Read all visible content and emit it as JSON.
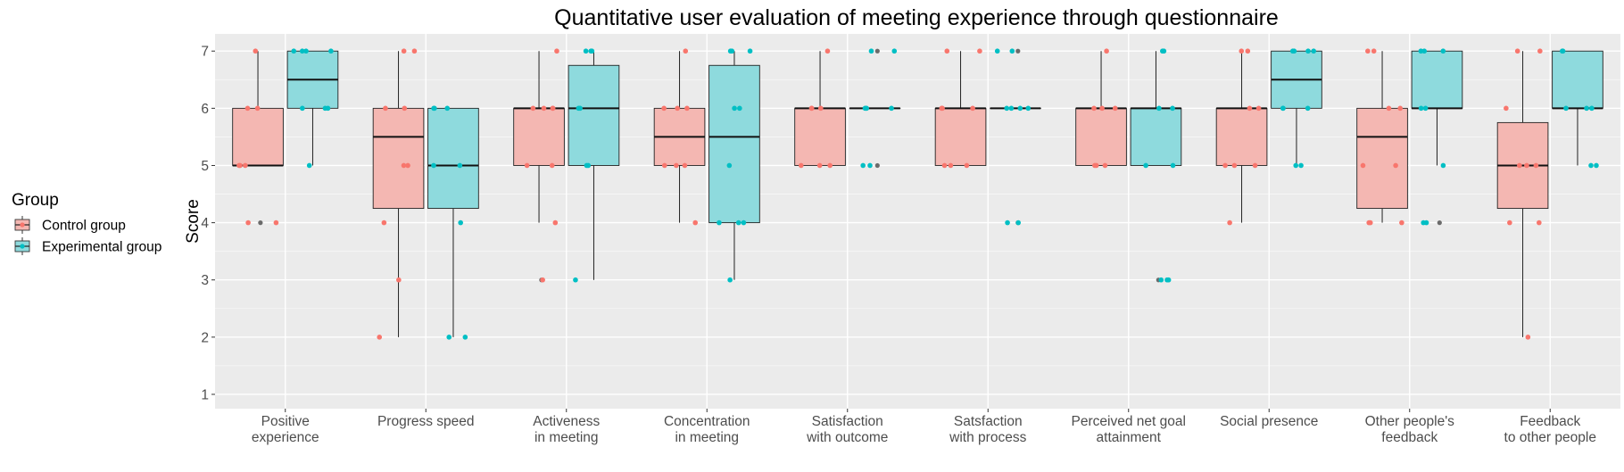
{
  "chart_data": {
    "type": "box",
    "title": "Quantitative user evaluation of meeting experience through questionnaire",
    "xlabel": "",
    "ylabel": "Score",
    "ylim": [
      0.75,
      7.3
    ],
    "yticks": [
      1,
      2,
      3,
      4,
      5,
      6,
      7
    ],
    "grid": true,
    "legend": {
      "title": "Group",
      "placement": "left",
      "entries": [
        "Control group",
        "Experimental group"
      ]
    },
    "categories": [
      [
        "Positive",
        "experience"
      ],
      [
        "Progress speed"
      ],
      [
        "Activeness",
        "in meeting"
      ],
      [
        "Concentration",
        "in meeting"
      ],
      [
        "Satisfaction",
        "with outcome"
      ],
      [
        "Satsfaction",
        "with process"
      ],
      [
        "Perceived net goal",
        "attainment"
      ],
      [
        "Social presence"
      ],
      [
        "Other people's",
        "feedback"
      ],
      [
        "Feedback",
        "to other people"
      ]
    ],
    "series": [
      {
        "name": "Control group",
        "color": "#F8766D",
        "fill": "#F4B7B2",
        "boxes": [
          {
            "low": 5,
            "q1": 5,
            "median": 5,
            "q3": 6,
            "high": 7,
            "outliers": [
              4
            ]
          },
          {
            "low": 2,
            "q1": 4.25,
            "median": 5.5,
            "q3": 6,
            "high": 7,
            "outliers": []
          },
          {
            "low": 4,
            "q1": 5,
            "median": 6,
            "q3": 6,
            "high": 7,
            "outliers": [
              3
            ]
          },
          {
            "low": 4,
            "q1": 5,
            "median": 5.5,
            "q3": 6,
            "high": 7,
            "outliers": []
          },
          {
            "low": 5,
            "q1": 5,
            "median": 6,
            "q3": 6,
            "high": 7,
            "outliers": []
          },
          {
            "low": 5,
            "q1": 5,
            "median": 6,
            "q3": 6,
            "high": 7,
            "outliers": []
          },
          {
            "low": 5,
            "q1": 5,
            "median": 6,
            "q3": 6,
            "high": 7,
            "outliers": []
          },
          {
            "low": 4,
            "q1": 5,
            "median": 6,
            "q3": 6,
            "high": 7,
            "outliers": []
          },
          {
            "low": 4,
            "q1": 4.25,
            "median": 5.5,
            "q3": 6,
            "high": 7,
            "outliers": []
          },
          {
            "low": 2,
            "q1": 4.25,
            "median": 5,
            "q3": 5.75,
            "high": 7,
            "outliers": []
          }
        ],
        "points": [
          [
            7,
            6,
            6,
            5,
            5,
            5,
            4,
            4
          ],
          [
            7,
            7,
            6,
            6,
            5,
            5,
            4,
            3,
            2
          ],
          [
            7,
            6,
            6,
            6,
            6,
            5,
            5,
            4,
            3
          ],
          [
            7,
            6,
            6,
            6,
            5,
            5,
            5,
            4
          ],
          [
            7,
            6,
            6,
            6,
            5,
            5,
            5
          ],
          [
            7,
            7,
            6,
            6,
            6,
            5,
            5,
            5
          ],
          [
            7,
            6,
            6,
            6,
            5,
            5,
            5
          ],
          [
            7,
            7,
            6,
            6,
            5,
            5,
            5,
            4
          ],
          [
            7,
            7,
            6,
            6,
            5,
            5,
            4,
            4,
            4
          ],
          [
            7,
            7,
            6,
            5,
            5,
            5,
            4,
            4,
            2
          ]
        ]
      },
      {
        "name": "Experimental group",
        "color": "#00BFC4",
        "fill": "#8EDADD",
        "boxes": [
          {
            "low": 5,
            "q1": 6,
            "median": 6.5,
            "q3": 7,
            "high": 7,
            "outliers": []
          },
          {
            "low": 2,
            "q1": 4.25,
            "median": 5,
            "q3": 6,
            "high": 6,
            "outliers": []
          },
          {
            "low": 3,
            "q1": 5,
            "median": 6,
            "q3": 6.75,
            "high": 7,
            "outliers": []
          },
          {
            "low": 3,
            "q1": 4,
            "median": 5.5,
            "q3": 6.75,
            "high": 7,
            "outliers": []
          },
          {
            "low": 6,
            "q1": 6,
            "median": 6,
            "q3": 6,
            "high": 6,
            "outliers": [
              7,
              5
            ]
          },
          {
            "low": 6,
            "q1": 6,
            "median": 6,
            "q3": 6,
            "high": 6,
            "outliers": [
              7,
              4
            ]
          },
          {
            "low": 5,
            "q1": 5,
            "median": 6,
            "q3": 6,
            "high": 7,
            "outliers": [
              3
            ]
          },
          {
            "low": 5,
            "q1": 6,
            "median": 6.5,
            "q3": 7,
            "high": 7,
            "outliers": []
          },
          {
            "low": 5,
            "q1": 6,
            "median": 6,
            "q3": 7,
            "high": 7,
            "outliers": [
              4
            ]
          },
          {
            "low": 5,
            "q1": 6,
            "median": 6,
            "q3": 7,
            "high": 7,
            "outliers": []
          }
        ],
        "points": [
          [
            7,
            7,
            7,
            7,
            6,
            6,
            6,
            5
          ],
          [
            6,
            6,
            6,
            5,
            5,
            4,
            2,
            2
          ],
          [
            7,
            7,
            7,
            6,
            6,
            5,
            5,
            3
          ],
          [
            7,
            7,
            7,
            6,
            6,
            5,
            4,
            4,
            4,
            3
          ],
          [
            7,
            7,
            6,
            6,
            6,
            6,
            5,
            5
          ],
          [
            7,
            7,
            6,
            6,
            6,
            6,
            4,
            4
          ],
          [
            7,
            7,
            6,
            6,
            5,
            5,
            3,
            3,
            3
          ],
          [
            7,
            7,
            7,
            7,
            6,
            6,
            6,
            5,
            5
          ],
          [
            7,
            7,
            7,
            6,
            6,
            5,
            4,
            4
          ],
          [
            7,
            7,
            6,
            6,
            6,
            5,
            5
          ]
        ]
      }
    ]
  }
}
